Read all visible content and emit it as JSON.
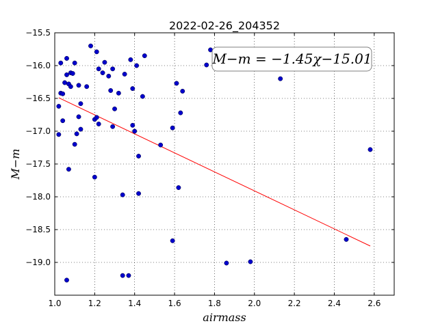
{
  "chart_data": {
    "type": "scatter",
    "title": "2022-02-26_204352",
    "xlabel": "airmass",
    "ylabel": "M−m",
    "xlim": [
      1.0,
      2.7
    ],
    "ylim": [
      -19.5,
      -15.5
    ],
    "y_inverted": true,
    "xticks": [
      "1.0",
      "1.2",
      "1.4",
      "1.6",
      "1.8",
      "2.0",
      "2.2",
      "2.4",
      "2.6"
    ],
    "yticks": [
      "−15.5",
      "−16.0",
      "−16.5",
      "−17.0",
      "−17.5",
      "−18.0",
      "−18.5",
      "−19.0"
    ],
    "grid": true,
    "annotation": "M−m = −1.45χ−15.01",
    "points_color": "#0000cc",
    "fit_color": "#ff0000",
    "points": [
      [
        1.02,
        -16.62
      ],
      [
        1.02,
        -17.05
      ],
      [
        1.03,
        -16.42
      ],
      [
        1.03,
        -15.96
      ],
      [
        1.04,
        -16.43
      ],
      [
        1.04,
        -16.84
      ],
      [
        1.05,
        -16.26
      ],
      [
        1.06,
        -16.14
      ],
      [
        1.06,
        -19.27
      ],
      [
        1.06,
        -15.89
      ],
      [
        1.07,
        -16.28
      ],
      [
        1.07,
        -17.58
      ],
      [
        1.08,
        -16.11
      ],
      [
        1.08,
        -16.32
      ],
      [
        1.09,
        -16.12
      ],
      [
        1.1,
        -15.96
      ],
      [
        1.1,
        -17.2
      ],
      [
        1.11,
        -17.04
      ],
      [
        1.12,
        -16.3
      ],
      [
        1.12,
        -16.78
      ],
      [
        1.13,
        -16.97
      ],
      [
        1.13,
        -16.58
      ],
      [
        1.16,
        -16.32
      ],
      [
        1.18,
        -15.7
      ],
      [
        1.2,
        -16.82
      ],
      [
        1.2,
        -17.7
      ],
      [
        1.21,
        -16.79
      ],
      [
        1.21,
        -15.79
      ],
      [
        1.22,
        -16.89
      ],
      [
        1.22,
        -16.05
      ],
      [
        1.24,
        -16.11
      ],
      [
        1.25,
        -15.95
      ],
      [
        1.27,
        -16.16
      ],
      [
        1.28,
        -16.38
      ],
      [
        1.29,
        -16.05
      ],
      [
        1.29,
        -16.93
      ],
      [
        1.3,
        -16.66
      ],
      [
        1.32,
        -16.42
      ],
      [
        1.34,
        -17.97
      ],
      [
        1.34,
        -19.2
      ],
      [
        1.35,
        -16.13
      ],
      [
        1.37,
        -19.2
      ],
      [
        1.38,
        -15.91
      ],
      [
        1.39,
        -16.35
      ],
      [
        1.39,
        -16.91
      ],
      [
        1.4,
        -17.0
      ],
      [
        1.41,
        -16.0
      ],
      [
        1.42,
        -17.38
      ],
      [
        1.42,
        -17.95
      ],
      [
        1.44,
        -16.47
      ],
      [
        1.45,
        -15.85
      ],
      [
        1.53,
        -17.21
      ],
      [
        1.59,
        -16.95
      ],
      [
        1.59,
        -18.67
      ],
      [
        1.61,
        -16.27
      ],
      [
        1.62,
        -17.86
      ],
      [
        1.63,
        -16.72
      ],
      [
        1.64,
        -16.39
      ],
      [
        1.76,
        -15.99
      ],
      [
        1.78,
        -15.76
      ],
      [
        1.86,
        -19.01
      ],
      [
        1.98,
        -18.99
      ],
      [
        2.13,
        -16.2
      ],
      [
        2.46,
        -18.65
      ],
      [
        2.58,
        -17.28
      ]
    ],
    "fit_line": {
      "x": [
        1.02,
        2.58
      ],
      "y": [
        -16.49,
        -18.75
      ]
    }
  }
}
